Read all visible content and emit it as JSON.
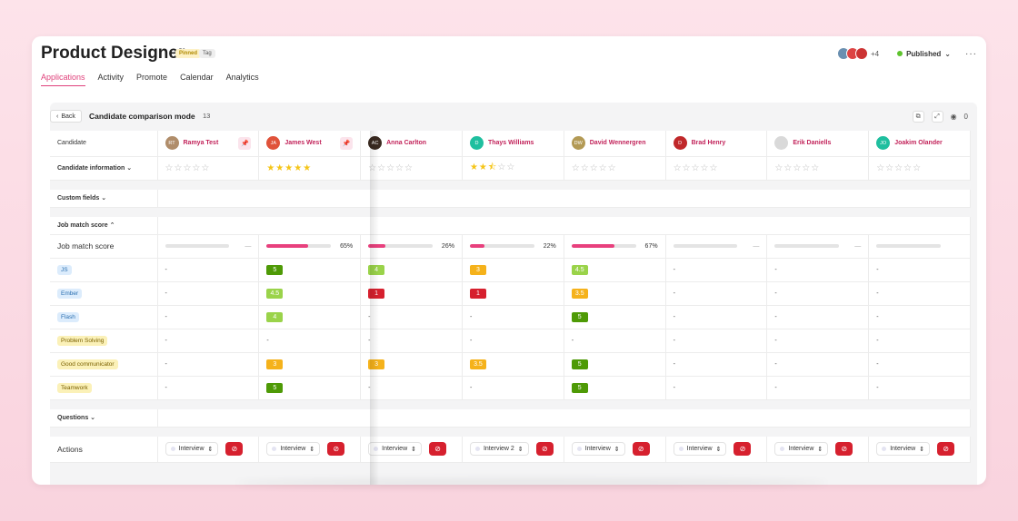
{
  "header": {
    "title": "Product Designer",
    "badges": [
      "Pinned",
      "Tag"
    ],
    "extra_viewers": "+4",
    "status": "Published"
  },
  "tabs": [
    "Applications",
    "Activity",
    "Promote",
    "Calendar",
    "Analytics"
  ],
  "toolbar": {
    "back_label": "Back",
    "title": "Candidate comparison mode",
    "count": "13",
    "eye_count": "0"
  },
  "rows": {
    "candidate": "Candidate",
    "candidate_info": "Candidate information",
    "custom_fields": "Custom fields",
    "job_match_section": "Job match score",
    "job_match_row": "Job match score",
    "questions": "Questions",
    "actions": "Actions"
  },
  "candidates": [
    {
      "name": "Ramya Test",
      "initials": "RT",
      "color": "#b08d6a",
      "pinned": true,
      "stars": 0,
      "match": null,
      "match_label": "—",
      "action": "Interview"
    },
    {
      "name": "James West",
      "initials": "JA",
      "color": "#e0523a",
      "pinned": true,
      "stars": 5,
      "match": 65,
      "match_label": "65%",
      "action": "Interview"
    },
    {
      "name": "Anna Carlton",
      "initials": "AC",
      "color": "#3a2a20",
      "pinned": false,
      "stars": 0,
      "match": 26,
      "match_label": "26%",
      "action": "Interview"
    },
    {
      "name": "Thays Williams",
      "initials": "D",
      "color": "#1fbf9f",
      "pinned": false,
      "stars": 2.5,
      "match": 22,
      "match_label": "22%",
      "action": "Interview 2"
    },
    {
      "name": "David Wennergren",
      "initials": "DW",
      "color": "#b39a55",
      "pinned": false,
      "stars": 0,
      "match": 67,
      "match_label": "67%",
      "action": "Interview"
    },
    {
      "name": "Brad Henry",
      "initials": "D",
      "color": "#c0282a",
      "pinned": false,
      "stars": 0,
      "match": null,
      "match_label": "—",
      "action": "Interview"
    },
    {
      "name": "Erik Daniells",
      "initials": "",
      "color": "#d9d9d9",
      "pinned": false,
      "stars": 0,
      "match": null,
      "match_label": "—",
      "action": "Interview"
    },
    {
      "name": "Joakim Olander",
      "initials": "JO",
      "color": "#1fbf9f",
      "pinned": false,
      "stars": 0,
      "match": null,
      "match_label": "",
      "action": "Interview"
    }
  ],
  "skills": [
    {
      "name": "JS",
      "style": "blue",
      "scores": [
        "-",
        "5",
        "4",
        "3",
        "4.5",
        "-",
        "-",
        "-"
      ]
    },
    {
      "name": "Ember",
      "style": "blue",
      "scores": [
        "-",
        "4.5",
        "1",
        "1",
        "3.5",
        "-",
        "-",
        "-"
      ]
    },
    {
      "name": "Flash",
      "style": "blue",
      "scores": [
        "-",
        "4",
        "-",
        "-",
        "5",
        "-",
        "-",
        "-"
      ]
    },
    {
      "name": "Problem Solving",
      "style": "yellow",
      "scores": [
        "-",
        "-",
        "-",
        "-",
        "-",
        "-",
        "-",
        "-"
      ]
    },
    {
      "name": "Good communicator",
      "style": "yellow",
      "scores": [
        "-",
        "3",
        "3",
        "3.5",
        "5",
        "-",
        "-",
        "-"
      ]
    },
    {
      "name": "Teamwork",
      "style": "yellow",
      "scores": [
        "-",
        "5",
        "-",
        "-",
        "5",
        "-",
        "-",
        "-"
      ]
    }
  ],
  "colors": {
    "accent": "#e0417b",
    "score_high": "#4e9a06",
    "score_mid_high": "#9ad34a",
    "score_mid": "#f5b21b",
    "score_low": "#d6202e"
  }
}
